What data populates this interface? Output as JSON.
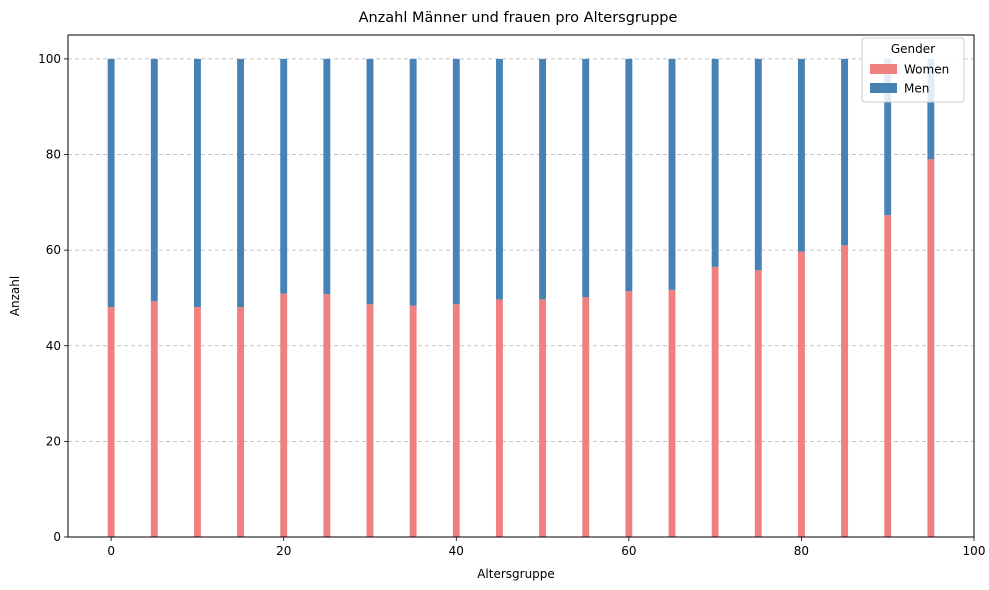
{
  "chart_data": {
    "type": "bar",
    "stacked": true,
    "title": "Anzahl Männer und frauen pro Altersgruppe",
    "xlabel": "Altersgruppe",
    "ylabel": "Anzahl",
    "xlim": [
      -5,
      100
    ],
    "ylim": [
      0,
      105
    ],
    "xticks": [
      0,
      20,
      40,
      60,
      80,
      100
    ],
    "yticks": [
      0,
      20,
      40,
      60,
      80,
      100
    ],
    "grid": "y-dashed",
    "legend": {
      "title": "Gender",
      "position": "top-right"
    },
    "x": [
      0,
      5,
      10,
      15,
      20,
      25,
      30,
      35,
      40,
      45,
      50,
      55,
      60,
      65,
      70,
      75,
      80,
      85,
      90,
      95
    ],
    "series": [
      {
        "name": "Women",
        "color": "#f08080",
        "values": [
          48.1,
          49.3,
          48.1,
          48.1,
          50.9,
          50.8,
          48.7,
          48.4,
          48.7,
          49.7,
          49.7,
          50.2,
          51.4,
          51.7,
          56.5,
          55.8,
          59.7,
          61.0,
          67.3,
          79.0
        ]
      },
      {
        "name": "Men",
        "color": "#4682b4",
        "values": [
          51.9,
          50.7,
          51.9,
          51.9,
          49.1,
          49.2,
          51.3,
          51.6,
          51.3,
          50.3,
          50.3,
          49.8,
          48.6,
          48.3,
          43.5,
          44.2,
          40.3,
          39.0,
          32.7,
          21.0
        ]
      }
    ]
  }
}
